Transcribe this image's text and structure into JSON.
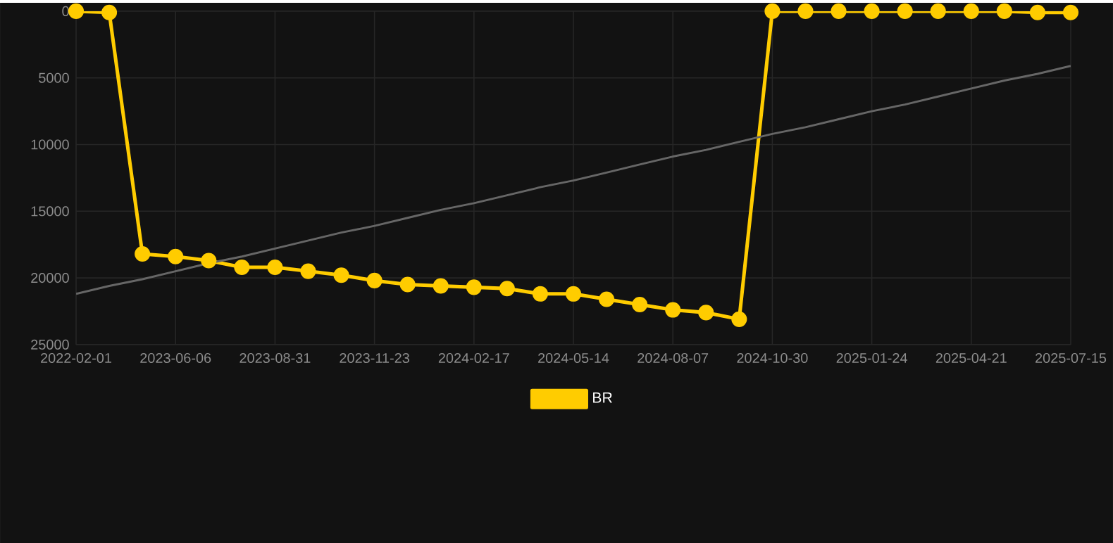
{
  "chart_data": {
    "type": "line",
    "categories": [
      "2022-02-01",
      null,
      null,
      "2023-06-06",
      null,
      null,
      "2023-08-31",
      null,
      null,
      "2023-11-23",
      null,
      null,
      "2024-02-17",
      null,
      null,
      "2024-05-14",
      null,
      null,
      "2024-08-07",
      null,
      null,
      "2024-10-30",
      null,
      null,
      "2025-01-24",
      null,
      null,
      "2025-04-21",
      null,
      null,
      "2025-07-15"
    ],
    "series": [
      {
        "name": "BR",
        "color": "#ffcc00",
        "values": [
          0,
          100,
          18200,
          18400,
          18700,
          19200,
          19200,
          19500,
          19800,
          20200,
          20500,
          20600,
          20700,
          20800,
          21200,
          21200,
          21600,
          22000,
          22400,
          22600,
          23100,
          0,
          0,
          0,
          0,
          0,
          0,
          0,
          0,
          100,
          100
        ]
      },
      {
        "type": "line",
        "color": "#666666",
        "marker": "none",
        "values": [
          21200,
          20600,
          20100,
          19500,
          18900,
          18400,
          17800,
          17200,
          16600,
          16100,
          15500,
          14900,
          14400,
          13800,
          13200,
          12700,
          12100,
          11500,
          10900,
          10400,
          9800,
          9200,
          8700,
          8100,
          7500,
          7000,
          6400,
          5800,
          5200,
          4700,
          4100
        ]
      }
    ],
    "ylim": [
      25000,
      0
    ],
    "yticks": [
      0,
      5000,
      10000,
      15000,
      20000,
      25000
    ],
    "grid": true,
    "legend": "bottom",
    "marker": "circle"
  }
}
